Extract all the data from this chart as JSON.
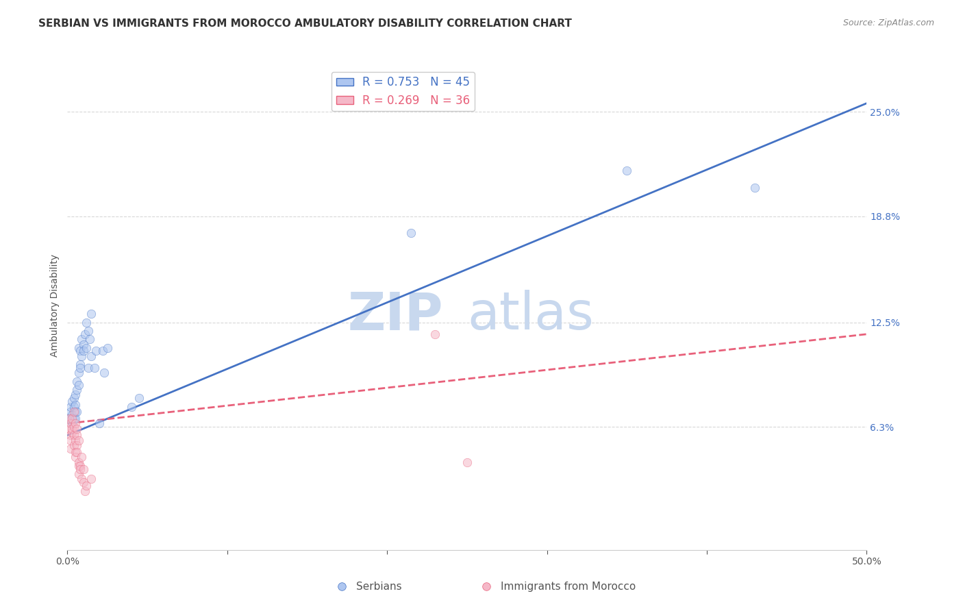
{
  "title": "SERBIAN VS IMMIGRANTS FROM MOROCCO AMBULATORY DISABILITY CORRELATION CHART",
  "source": "Source: ZipAtlas.com",
  "ylabel": "Ambulatory Disability",
  "xlim": [
    0.0,
    0.5
  ],
  "ylim": [
    -0.01,
    0.28
  ],
  "yticks": [
    0.063,
    0.125,
    0.188,
    0.25
  ],
  "ytick_labels": [
    "6.3%",
    "12.5%",
    "18.8%",
    "25.0%"
  ],
  "xticks": [
    0.0,
    0.1,
    0.2,
    0.3,
    0.4,
    0.5
  ],
  "xtick_labels": [
    "0.0%",
    "",
    "",
    "",
    "",
    "50.0%"
  ],
  "watermark_zip": "ZIP",
  "watermark_atlas": "atlas",
  "background_color": "#ffffff",
  "grid_color": "#d8d8d8",
  "serbian_color": "#aec6f0",
  "serbian_line_color": "#4472c4",
  "morocco_color": "#f5b8c8",
  "morocco_line_color": "#e8607a",
  "legend_serbian_R": "0.753",
  "legend_serbian_N": "45",
  "legend_morocco_R": "0.269",
  "legend_morocco_N": "36",
  "serbian_scatter": [
    [
      0.001,
      0.068
    ],
    [
      0.002,
      0.072
    ],
    [
      0.002,
      0.075
    ],
    [
      0.003,
      0.065
    ],
    [
      0.003,
      0.07
    ],
    [
      0.003,
      0.078
    ],
    [
      0.004,
      0.075
    ],
    [
      0.004,
      0.068
    ],
    [
      0.004,
      0.08
    ],
    [
      0.005,
      0.072
    ],
    [
      0.005,
      0.082
    ],
    [
      0.005,
      0.076
    ],
    [
      0.006,
      0.09
    ],
    [
      0.006,
      0.085
    ],
    [
      0.007,
      0.095
    ],
    [
      0.007,
      0.088
    ],
    [
      0.007,
      0.11
    ],
    [
      0.008,
      0.1
    ],
    [
      0.008,
      0.108
    ],
    [
      0.008,
      0.098
    ],
    [
      0.009,
      0.115
    ],
    [
      0.009,
      0.105
    ],
    [
      0.01,
      0.112
    ],
    [
      0.01,
      0.108
    ],
    [
      0.011,
      0.118
    ],
    [
      0.012,
      0.11
    ],
    [
      0.012,
      0.125
    ],
    [
      0.013,
      0.12
    ],
    [
      0.013,
      0.098
    ],
    [
      0.014,
      0.115
    ],
    [
      0.015,
      0.105
    ],
    [
      0.015,
      0.13
    ],
    [
      0.017,
      0.098
    ],
    [
      0.018,
      0.108
    ],
    [
      0.02,
      0.065
    ],
    [
      0.022,
      0.108
    ],
    [
      0.023,
      0.095
    ],
    [
      0.025,
      0.11
    ],
    [
      0.04,
      0.075
    ],
    [
      0.045,
      0.08
    ],
    [
      0.215,
      0.178
    ],
    [
      0.35,
      0.215
    ],
    [
      0.43,
      0.205
    ],
    [
      0.005,
      0.068
    ],
    [
      0.006,
      0.072
    ]
  ],
  "morocco_scatter": [
    [
      0.001,
      0.068
    ],
    [
      0.001,
      0.062
    ],
    [
      0.002,
      0.058
    ],
    [
      0.002,
      0.055
    ],
    [
      0.002,
      0.065
    ],
    [
      0.002,
      0.05
    ],
    [
      0.003,
      0.068
    ],
    [
      0.003,
      0.06
    ],
    [
      0.003,
      0.062
    ],
    [
      0.004,
      0.063
    ],
    [
      0.004,
      0.058
    ],
    [
      0.004,
      0.072
    ],
    [
      0.004,
      0.052
    ],
    [
      0.005,
      0.065
    ],
    [
      0.005,
      0.048
    ],
    [
      0.005,
      0.055
    ],
    [
      0.005,
      0.045
    ],
    [
      0.006,
      0.058
    ],
    [
      0.006,
      0.052
    ],
    [
      0.006,
      0.062
    ],
    [
      0.006,
      0.048
    ],
    [
      0.007,
      0.042
    ],
    [
      0.007,
      0.055
    ],
    [
      0.007,
      0.04
    ],
    [
      0.007,
      0.035
    ],
    [
      0.008,
      0.04
    ],
    [
      0.008,
      0.038
    ],
    [
      0.009,
      0.032
    ],
    [
      0.009,
      0.045
    ],
    [
      0.01,
      0.038
    ],
    [
      0.01,
      0.03
    ],
    [
      0.011,
      0.025
    ],
    [
      0.012,
      0.028
    ],
    [
      0.015,
      0.032
    ],
    [
      0.23,
      0.118
    ],
    [
      0.25,
      0.042
    ]
  ],
  "title_fontsize": 11,
  "axis_label_fontsize": 10,
  "tick_fontsize": 10,
  "legend_fontsize": 12,
  "watermark_fontsize": 55,
  "watermark_color_zip": "#c8d8ee",
  "watermark_color_atlas": "#c8d8ee",
  "scatter_size": 80,
  "scatter_alpha": 0.55,
  "line_width": 2.0,
  "serbian_line_x": [
    0.0,
    0.5
  ],
  "serbian_line_y": [
    0.058,
    0.255
  ],
  "morocco_line_x": [
    0.0,
    0.5
  ],
  "morocco_line_y": [
    0.065,
    0.118
  ]
}
